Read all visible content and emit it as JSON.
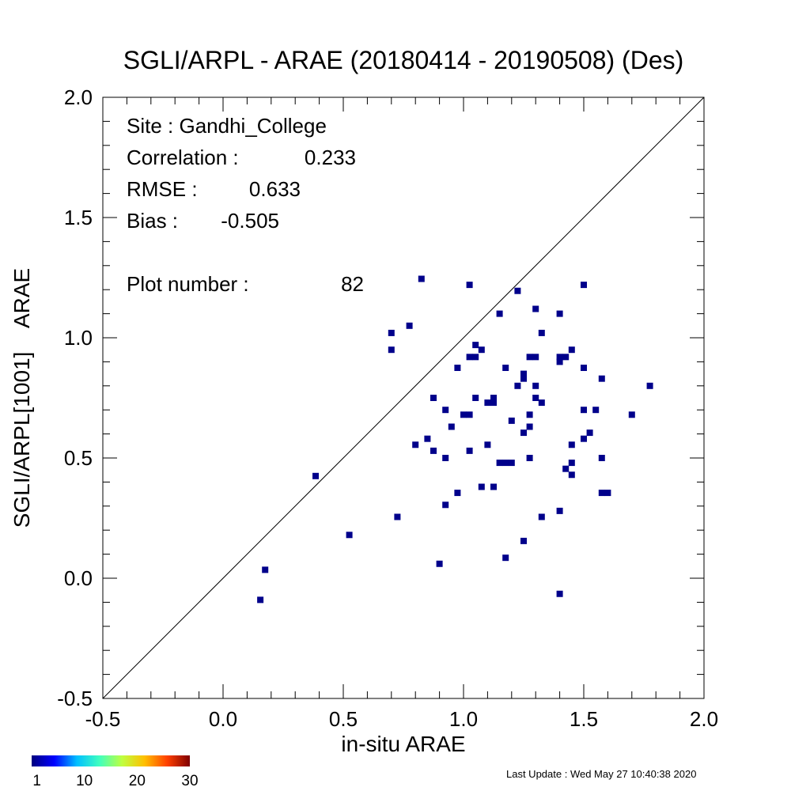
{
  "chart_data": {
    "type": "scatter",
    "title": "SGLI/ARPL - ARAE (20180414 - 20190508) (Des)",
    "xlabel": "in-situ ARAE",
    "ylabel": "SGLI/ARPL[1001]    ARAE",
    "xlim": [
      -0.5,
      2.0
    ],
    "ylim": [
      -0.5,
      2.0
    ],
    "x_ticks": [
      "-0.5",
      "0.0",
      "0.5",
      "1.0",
      "1.5",
      "2.0"
    ],
    "y_ticks": [
      "-0.5",
      "0.0",
      "0.5",
      "1.0",
      "1.5",
      "2.0"
    ],
    "grid": false,
    "one_to_one_line": true,
    "marker_color": "#00008b",
    "stats": {
      "site_label": "Site : Gandhi_College",
      "correlation_label": "Correlation :",
      "correlation_value": "0.233",
      "rmse_label": "RMSE :",
      "rmse_value": "0.633",
      "bias_label": "Bias :",
      "bias_value": "-0.505",
      "plot_number_label": "Plot number :",
      "plot_number_value": "82"
    },
    "points": [
      [
        0.155,
        -0.09
      ],
      [
        0.175,
        0.035
      ],
      [
        0.385,
        0.425
      ],
      [
        0.525,
        0.18
      ],
      [
        0.7,
        1.02
      ],
      [
        0.7,
        0.95
      ],
      [
        0.725,
        0.255
      ],
      [
        0.775,
        1.05
      ],
      [
        0.825,
        1.245
      ],
      [
        0.8,
        0.555
      ],
      [
        0.85,
        0.58
      ],
      [
        0.875,
        0.75
      ],
      [
        0.875,
        0.53
      ],
      [
        0.9,
        0.06
      ],
      [
        0.925,
        0.7
      ],
      [
        0.925,
        0.5
      ],
      [
        0.925,
        0.305
      ],
      [
        0.95,
        0.63
      ],
      [
        0.975,
        0.875
      ],
      [
        0.975,
        0.355
      ],
      [
        1.0,
        0.68
      ],
      [
        1.025,
        0.68
      ],
      [
        1.025,
        0.53
      ],
      [
        1.025,
        0.92
      ],
      [
        1.025,
        1.22
      ],
      [
        1.05,
        0.92
      ],
      [
        1.05,
        0.97
      ],
      [
        1.05,
        0.75
      ],
      [
        1.075,
        0.95
      ],
      [
        1.075,
        0.38
      ],
      [
        1.1,
        0.73
      ],
      [
        1.1,
        0.555
      ],
      [
        1.125,
        0.73
      ],
      [
        1.125,
        0.75
      ],
      [
        1.125,
        0.38
      ],
      [
        1.15,
        1.1
      ],
      [
        1.15,
        0.48
      ],
      [
        1.175,
        0.875
      ],
      [
        1.175,
        0.48
      ],
      [
        1.175,
        0.085
      ],
      [
        1.2,
        0.655
      ],
      [
        1.2,
        0.48
      ],
      [
        1.225,
        1.195
      ],
      [
        1.225,
        0.8
      ],
      [
        1.25,
        0.85
      ],
      [
        1.25,
        0.83
      ],
      [
        1.25,
        0.605
      ],
      [
        1.25,
        0.155
      ],
      [
        1.275,
        0.92
      ],
      [
        1.275,
        0.68
      ],
      [
        1.275,
        0.63
      ],
      [
        1.275,
        0.5
      ],
      [
        1.3,
        1.12
      ],
      [
        1.3,
        0.92
      ],
      [
        1.3,
        0.8
      ],
      [
        1.3,
        0.75
      ],
      [
        1.325,
        1.02
      ],
      [
        1.325,
        0.73
      ],
      [
        1.325,
        0.255
      ],
      [
        1.4,
        1.1
      ],
      [
        1.4,
        0.92
      ],
      [
        1.4,
        0.9
      ],
      [
        1.4,
        0.28
      ],
      [
        1.4,
        -0.065
      ],
      [
        1.425,
        0.92
      ],
      [
        1.425,
        0.455
      ],
      [
        1.45,
        0.95
      ],
      [
        1.45,
        0.555
      ],
      [
        1.45,
        0.48
      ],
      [
        1.45,
        0.43
      ],
      [
        1.5,
        1.22
      ],
      [
        1.5,
        0.875
      ],
      [
        1.5,
        0.7
      ],
      [
        1.5,
        0.58
      ],
      [
        1.525,
        0.605
      ],
      [
        1.55,
        0.7
      ],
      [
        1.575,
        0.83
      ],
      [
        1.575,
        0.5
      ],
      [
        1.575,
        0.355
      ],
      [
        1.6,
        0.355
      ],
      [
        1.7,
        0.68
      ],
      [
        1.775,
        0.8
      ]
    ]
  },
  "colorbar": {
    "colors": [
      "#00007f",
      "#0000ff",
      "#00bfff",
      "#40ffbf",
      "#bfff40",
      "#ffbf00",
      "#ff4000",
      "#7f0000"
    ],
    "ticks": [
      "1",
      "10",
      "20",
      "30"
    ],
    "tick_values": [
      1,
      10,
      20,
      30
    ],
    "range": [
      0,
      30
    ]
  },
  "footer": {
    "last_update": "Last Update : Wed May 27 10:40:38 2020"
  }
}
